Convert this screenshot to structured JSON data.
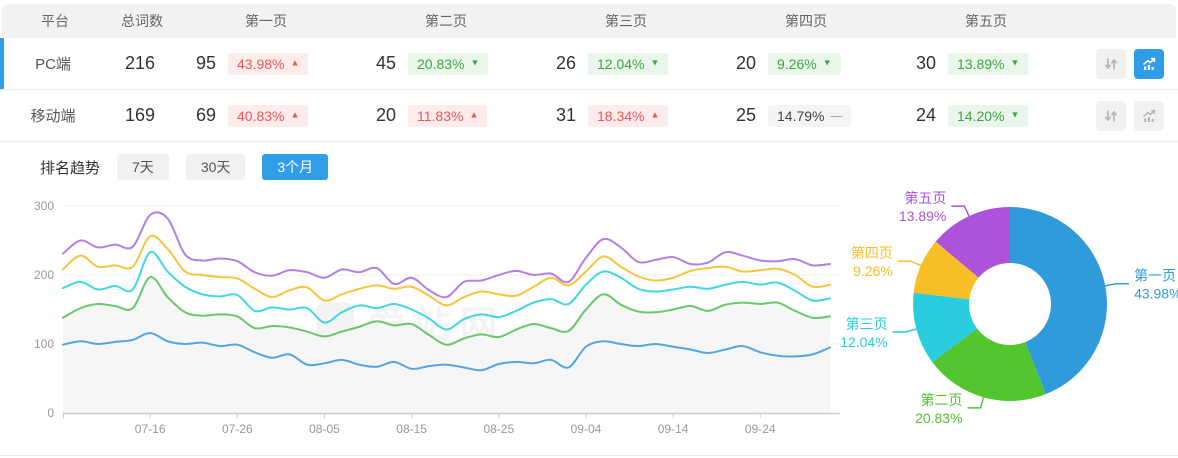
{
  "table": {
    "headers": [
      "平台",
      "总词数",
      "第一页",
      "第二页",
      "第三页",
      "第四页",
      "第五页"
    ],
    "rows": [
      {
        "platform": "PC端",
        "total": "216",
        "selected": true,
        "trend_active": true,
        "pages": [
          {
            "count": "95",
            "pct": "43.98%",
            "dir": "up"
          },
          {
            "count": "45",
            "pct": "20.83%",
            "dir": "down"
          },
          {
            "count": "26",
            "pct": "12.04%",
            "dir": "down"
          },
          {
            "count": "20",
            "pct": "9.26%",
            "dir": "down"
          },
          {
            "count": "30",
            "pct": "13.89%",
            "dir": "down"
          }
        ]
      },
      {
        "platform": "移动端",
        "total": "169",
        "selected": false,
        "trend_active": false,
        "pages": [
          {
            "count": "69",
            "pct": "40.83%",
            "dir": "up"
          },
          {
            "count": "20",
            "pct": "11.83%",
            "dir": "up"
          },
          {
            "count": "31",
            "pct": "18.34%",
            "dir": "up"
          },
          {
            "count": "25",
            "pct": "14.79%",
            "dir": "flat"
          },
          {
            "count": "24",
            "pct": "14.20%",
            "dir": "down"
          }
        ]
      }
    ],
    "icons": {
      "sort": "sort-arrows-icon",
      "trend": "trend-chart-icon"
    }
  },
  "trend": {
    "title": "排名趋势",
    "tabs": [
      {
        "label": "7天",
        "active": false
      },
      {
        "label": "30天",
        "active": false
      },
      {
        "label": "3个月",
        "active": true
      }
    ]
  },
  "watermark": "爱站网",
  "colors": {
    "accent_blue": "#2f9de8",
    "badge_up_text": "#f25555",
    "badge_up_bg": "#fdecec",
    "badge_down_text": "#3aa83f",
    "badge_down_bg": "#eaf6ec",
    "badge_flat_bg": "#f4f4f5"
  },
  "chart_data": [
    {
      "type": "line",
      "title": "排名趋势 3个月",
      "grid": true,
      "ylim": [
        0,
        300
      ],
      "y_ticks": [
        0,
        100,
        200,
        300
      ],
      "x_tick_labels": [
        "07-16",
        "07-26",
        "08-05",
        "08-15",
        "08-25",
        "09-04",
        "09-14",
        "09-24"
      ],
      "x_tick_indices": [
        5,
        10,
        15,
        20,
        25,
        30,
        35,
        40
      ],
      "legend_position": "none",
      "series": [
        {
          "name": "purple-line",
          "color": "#b57ee6",
          "values": [
            231,
            250,
            240,
            244,
            241,
            287,
            282,
            230,
            221,
            224,
            220,
            204,
            199,
            207,
            204,
            196,
            208,
            204,
            210,
            187,
            196,
            178,
            168,
            190,
            192,
            200,
            206,
            200,
            202,
            190,
            225,
            252,
            240,
            219,
            222,
            226,
            216,
            218,
            233,
            228,
            221,
            220,
            223,
            214,
            216
          ]
        },
        {
          "name": "yellow-line",
          "color": "#f8c43e",
          "values": [
            208,
            228,
            212,
            214,
            212,
            256,
            238,
            205,
            200,
            197,
            195,
            180,
            168,
            178,
            182,
            163,
            172,
            180,
            185,
            180,
            183,
            170,
            156,
            168,
            176,
            172,
            170,
            183,
            196,
            185,
            205,
            227,
            212,
            198,
            192,
            196,
            206,
            210,
            212,
            205,
            207,
            209,
            200,
            183,
            186
          ]
        },
        {
          "name": "cyan-line",
          "color": "#42d6e4",
          "values": [
            181,
            190,
            179,
            184,
            179,
            233,
            205,
            183,
            172,
            169,
            171,
            148,
            153,
            150,
            152,
            131,
            146,
            156,
            152,
            158,
            150,
            137,
            121,
            136,
            143,
            139,
            148,
            160,
            165,
            158,
            186,
            205,
            196,
            180,
            176,
            179,
            183,
            180,
            186,
            190,
            186,
            189,
            177,
            163,
            166
          ]
        },
        {
          "name": "green-line",
          "color": "#67c967",
          "area_fill": "#f6f6f6",
          "values": [
            138,
            152,
            158,
            155,
            152,
            197,
            168,
            146,
            141,
            143,
            140,
            123,
            126,
            124,
            118,
            111,
            118,
            125,
            133,
            127,
            129,
            113,
            99,
            108,
            114,
            110,
            121,
            129,
            123,
            119,
            150,
            172,
            157,
            147,
            146,
            150,
            155,
            148,
            157,
            160,
            158,
            160,
            148,
            138,
            140
          ]
        },
        {
          "name": "blue-line",
          "color": "#55a5e6",
          "values": [
            99,
            104,
            100,
            103,
            106,
            116,
            104,
            100,
            102,
            97,
            99,
            88,
            80,
            85,
            70,
            72,
            77,
            70,
            67,
            74,
            64,
            68,
            70,
            66,
            62,
            71,
            74,
            72,
            77,
            66,
            96,
            104,
            100,
            97,
            100,
            96,
            92,
            87,
            92,
            97,
            88,
            83,
            82,
            85,
            95
          ]
        }
      ]
    },
    {
      "type": "pie",
      "donut": true,
      "slices": [
        {
          "label": "第一页",
          "value": 43.98,
          "display": "43.98%",
          "color": "#2f9bdb"
        },
        {
          "label": "第二页",
          "value": 20.83,
          "display": "20.83%",
          "color": "#52c52f"
        },
        {
          "label": "第三页",
          "value": 12.04,
          "display": "12.04%",
          "color": "#29cdde"
        },
        {
          "label": "第四页",
          "value": 9.26,
          "display": "9.26%",
          "color": "#f8be26"
        },
        {
          "label": "第五页",
          "value": 13.89,
          "display": "13.89%",
          "color": "#ae52dc"
        }
      ]
    }
  ]
}
